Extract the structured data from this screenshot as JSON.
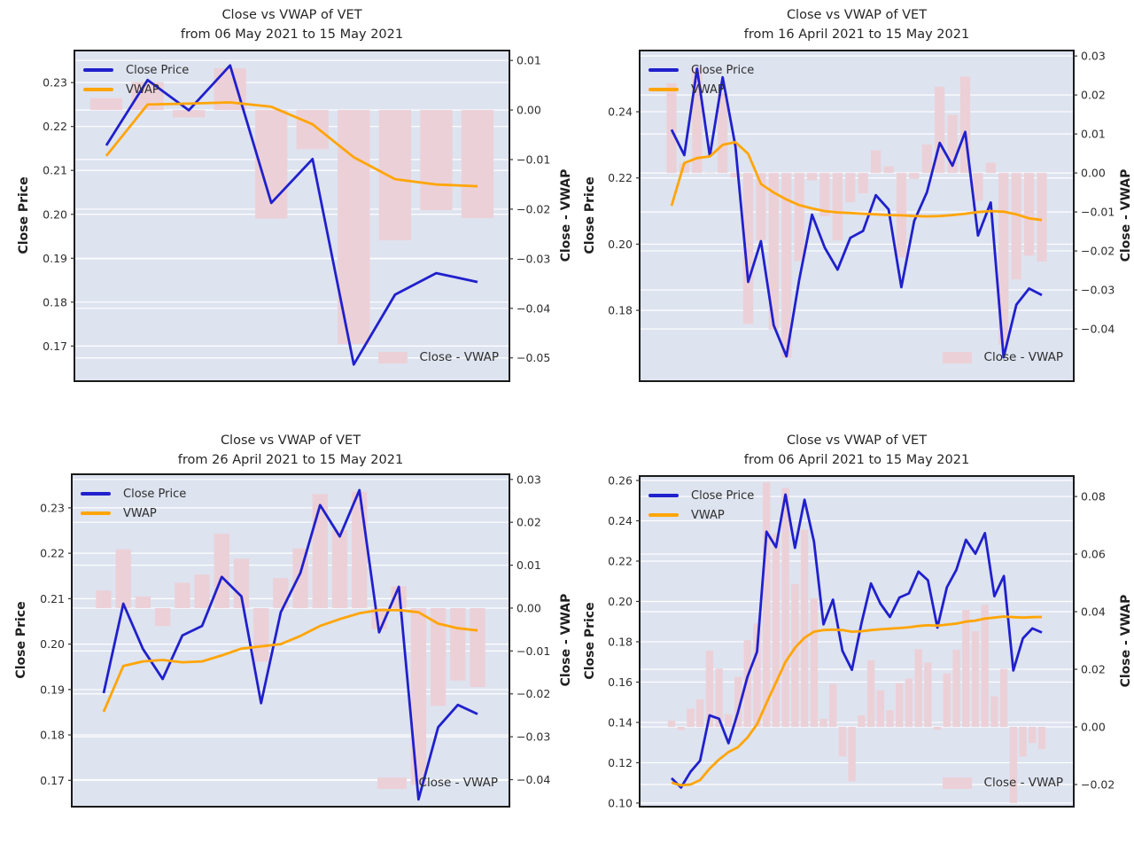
{
  "colors": {
    "close_line": "#2020cc",
    "vwap_line": "#ffa506",
    "diff_bar": "#ecd0d7",
    "plot_bg": "#dde3ef",
    "grid": "#ffffff",
    "border": "#1a1a1a",
    "tick_text": "#2e2e2e",
    "title_text": "#262626"
  },
  "chart_data": [
    {
      "type": "line+bar",
      "title": "Close vs VWAP of VET",
      "subtitle": "from 06 May 2021 to 15 May 2021",
      "ylabel_left": "Close Price",
      "ylabel_right": "Close - VWAP",
      "legend": {
        "close": "Close Price",
        "vwap": "VWAP",
        "diff": "Close - VWAP"
      },
      "legend_position": "upper-left and lower-right",
      "grid": true,
      "left_ticks": [
        0.17,
        0.18,
        0.19,
        0.2,
        0.21,
        0.22,
        0.23
      ],
      "right_ticks": [
        0.01,
        0.0,
        -0.01,
        -0.02,
        -0.03,
        -0.04,
        -0.05
      ],
      "ylim_left": [
        0.162,
        0.2373
      ],
      "ylim_right": [
        -0.0547,
        0.012
      ],
      "close": [
        0.2157,
        0.2306,
        0.2237,
        0.2339,
        0.2026,
        0.2126,
        0.1658,
        0.1817,
        0.1866,
        0.1846
      ],
      "vwap": [
        0.2133,
        0.225,
        0.2252,
        0.2255,
        0.2245,
        0.2205,
        0.213,
        0.208,
        0.2068,
        0.2064
      ],
      "close_minus_vwap": [
        0.0024,
        0.0056,
        -0.0015,
        0.0084,
        -0.0219,
        -0.0079,
        -0.0472,
        -0.0263,
        -0.0202,
        -0.0218
      ]
    },
    {
      "type": "line+bar",
      "title": "Close vs VWAP of VET",
      "subtitle": "from 16 April 2021 to 15 May 2021",
      "ylabel_left": "Close Price",
      "ylabel_right": "Close - VWAP",
      "legend": {
        "close": "Close Price",
        "vwap": "VWAP",
        "diff": "Close - VWAP"
      },
      "legend_position": "upper-left and lower-right",
      "grid": true,
      "left_ticks": [
        0.18,
        0.2,
        0.22,
        0.24
      ],
      "right_ticks": [
        0.03,
        0.02,
        0.01,
        0.0,
        -0.01,
        -0.02,
        -0.03,
        -0.04
      ],
      "ylim_left": [
        0.1586,
        0.2585
      ],
      "ylim_right": [
        -0.0534,
        0.0314
      ],
      "close": [
        0.2346,
        0.2269,
        0.253,
        0.2266,
        0.2504,
        0.2296,
        0.1886,
        0.2009,
        0.1755,
        0.1661,
        0.1892,
        0.2089,
        0.1989,
        0.1923,
        0.2019,
        0.204,
        0.2148,
        0.2105,
        0.187,
        0.207,
        0.2157,
        0.2306,
        0.2237,
        0.2339,
        0.2026,
        0.2126,
        0.1658,
        0.1817,
        0.1866,
        0.1846
      ],
      "vwap": [
        0.2116,
        0.2245,
        0.226,
        0.2265,
        0.23,
        0.2308,
        0.2273,
        0.2182,
        0.2156,
        0.2135,
        0.2118,
        0.2108,
        0.21,
        0.2096,
        0.2094,
        0.2092,
        0.209,
        0.2088,
        0.2087,
        0.2085,
        0.2084,
        0.2085,
        0.2088,
        0.2092,
        0.2097,
        0.21,
        0.2098,
        0.209,
        0.2078,
        0.2073
      ],
      "close_minus_vwap": [
        0.023,
        0.0024,
        0.027,
        0.0001,
        0.0204,
        -0.0012,
        -0.0387,
        -0.0173,
        -0.0401,
        -0.0474,
        -0.0226,
        -0.0019,
        -0.0111,
        -0.0173,
        -0.0075,
        -0.0052,
        0.0058,
        0.0017,
        -0.0217,
        -0.0015,
        0.0073,
        0.0221,
        0.0149,
        0.0247,
        -0.0071,
        0.0026,
        -0.044,
        -0.0273,
        -0.0212,
        -0.0227
      ]
    },
    {
      "type": "line+bar",
      "title": "Close vs VWAP of VET",
      "subtitle": "from 26 April 2021 to 15 May 2021",
      "ylabel_left": "Close Price",
      "ylabel_right": "Close - VWAP",
      "legend": {
        "close": "Close Price",
        "vwap": "VWAP",
        "diff": "Close - VWAP"
      },
      "legend_position": "upper-left and lower-right",
      "grid": true,
      "left_ticks": [
        0.17,
        0.18,
        0.19,
        0.2,
        0.21,
        0.22,
        0.23
      ],
      "right_ticks": [
        0.03,
        0.02,
        0.01,
        0.0,
        -0.01,
        -0.02,
        -0.03,
        -0.04
      ],
      "ylim_left": [
        0.1642,
        0.2374
      ],
      "ylim_right": [
        -0.0463,
        0.0312
      ],
      "close": [
        0.1892,
        0.2089,
        0.1989,
        0.1923,
        0.2019,
        0.204,
        0.2148,
        0.2105,
        0.187,
        0.207,
        0.2157,
        0.2306,
        0.2237,
        0.2339,
        0.2026,
        0.2126,
        0.1658,
        0.1817,
        0.1866,
        0.1846
      ],
      "vwap": [
        0.1851,
        0.1952,
        0.1962,
        0.1965,
        0.196,
        0.1962,
        0.1975,
        0.199,
        0.1995,
        0.2,
        0.2018,
        0.204,
        0.2055,
        0.2068,
        0.2075,
        0.2075,
        0.207,
        0.2045,
        0.2035,
        0.203
      ],
      "close_minus_vwap": [
        0.0041,
        0.0137,
        0.0027,
        -0.0042,
        0.0059,
        0.0078,
        0.0173,
        0.0115,
        -0.0125,
        0.007,
        0.0139,
        0.0266,
        0.0182,
        0.0271,
        -0.0049,
        0.0051,
        -0.0412,
        -0.0228,
        -0.0169,
        -0.0184
      ]
    },
    {
      "type": "line+bar",
      "title": "Close vs VWAP of VET",
      "subtitle": "from 06 April 2021 to 15 May 2021",
      "ylabel_left": "Close Price",
      "ylabel_right": "Close - VWAP",
      "legend": {
        "close": "Close Price",
        "vwap": "VWAP",
        "diff": "Close - VWAP"
      },
      "legend_position": "upper-left and lower-right",
      "grid": true,
      "left_ticks": [
        0.1,
        0.12,
        0.14,
        0.16,
        0.18,
        0.2,
        0.22,
        0.24,
        0.26
      ],
      "right_ticks": [
        0.08,
        0.06,
        0.04,
        0.02,
        0.0,
        -0.02
      ],
      "ylim_left": [
        0.0982,
        0.2622
      ],
      "ylim_right": [
        -0.0277,
        0.0871
      ],
      "close": [
        0.1123,
        0.1077,
        0.1155,
        0.121,
        0.1435,
        0.1418,
        0.1297,
        0.1451,
        0.1626,
        0.175,
        0.2346,
        0.2269,
        0.253,
        0.2266,
        0.2504,
        0.2296,
        0.1886,
        0.2009,
        0.1755,
        0.1661,
        0.1892,
        0.2089,
        0.1989,
        0.1923,
        0.2019,
        0.204,
        0.2148,
        0.2105,
        0.187,
        0.207,
        0.2157,
        0.2306,
        0.2237,
        0.2339,
        0.2026,
        0.2126,
        0.1658,
        0.1817,
        0.1866,
        0.1846
      ],
      "vwap": [
        0.1101,
        0.1088,
        0.1092,
        0.1114,
        0.117,
        0.1216,
        0.1253,
        0.1277,
        0.1325,
        0.1391,
        0.1497,
        0.1598,
        0.17,
        0.177,
        0.182,
        0.185,
        0.1858,
        0.186,
        0.1858,
        0.185,
        0.1852,
        0.1858,
        0.1862,
        0.1865,
        0.1868,
        0.1872,
        0.1878,
        0.1882,
        0.188,
        0.1885,
        0.189,
        0.19,
        0.1905,
        0.1915,
        0.192,
        0.1925,
        0.1922,
        0.192,
        0.1922,
        0.1923
      ],
      "close_minus_vwap": [
        0.0022,
        -0.0011,
        0.0063,
        0.0096,
        0.0265,
        0.0202,
        0.0044,
        0.0174,
        0.0301,
        0.0359,
        0.0849,
        0.0671,
        0.083,
        0.0496,
        0.0684,
        0.0446,
        0.0028,
        0.0149,
        -0.0103,
        -0.0189,
        0.004,
        0.0231,
        0.0127,
        0.0058,
        0.0151,
        0.0168,
        0.027,
        0.0223,
        -0.001,
        0.0185,
        0.0267,
        0.0406,
        0.0332,
        0.0424,
        0.0106,
        0.0201,
        -0.0264,
        -0.0103,
        -0.0056,
        -0.0077
      ]
    }
  ]
}
